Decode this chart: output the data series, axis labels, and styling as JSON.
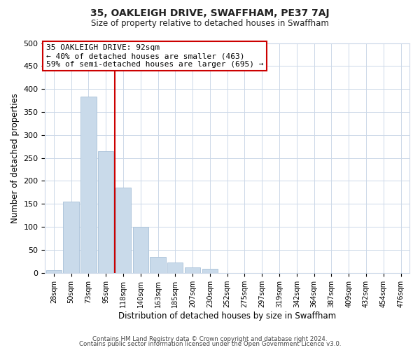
{
  "title": "35, OAKLEIGH DRIVE, SWAFFHAM, PE37 7AJ",
  "subtitle": "Size of property relative to detached houses in Swaffham",
  "xlabel": "Distribution of detached houses by size in Swaffham",
  "ylabel": "Number of detached properties",
  "bar_labels": [
    "28sqm",
    "50sqm",
    "73sqm",
    "95sqm",
    "118sqm",
    "140sqm",
    "163sqm",
    "185sqm",
    "207sqm",
    "230sqm",
    "252sqm",
    "275sqm",
    "297sqm",
    "319sqm",
    "342sqm",
    "364sqm",
    "387sqm",
    "409sqm",
    "432sqm",
    "454sqm",
    "476sqm"
  ],
  "bar_values": [
    6,
    155,
    383,
    265,
    185,
    100,
    35,
    22,
    12,
    8,
    0,
    0,
    0,
    0,
    0,
    0,
    0,
    0,
    0,
    0,
    0
  ],
  "bar_color": "#c9daea",
  "bar_edge_color": "#a8c0d8",
  "vline_x": 3.5,
  "vline_color": "#cc0000",
  "annotation_line1": "35 OAKLEIGH DRIVE: 92sqm",
  "annotation_line2": "← 40% of detached houses are smaller (463)",
  "annotation_line3": "59% of semi-detached houses are larger (695) →",
  "annotation_box_color": "#ffffff",
  "annotation_box_edge": "#cc0000",
  "ylim": [
    0,
    500
  ],
  "yticks": [
    0,
    50,
    100,
    150,
    200,
    250,
    300,
    350,
    400,
    450,
    500
  ],
  "footer1": "Contains HM Land Registry data © Crown copyright and database right 2024.",
  "footer2": "Contains public sector information licensed under the Open Government Licence v3.0.",
  "background_color": "#ffffff",
  "grid_color": "#ccd8e8"
}
